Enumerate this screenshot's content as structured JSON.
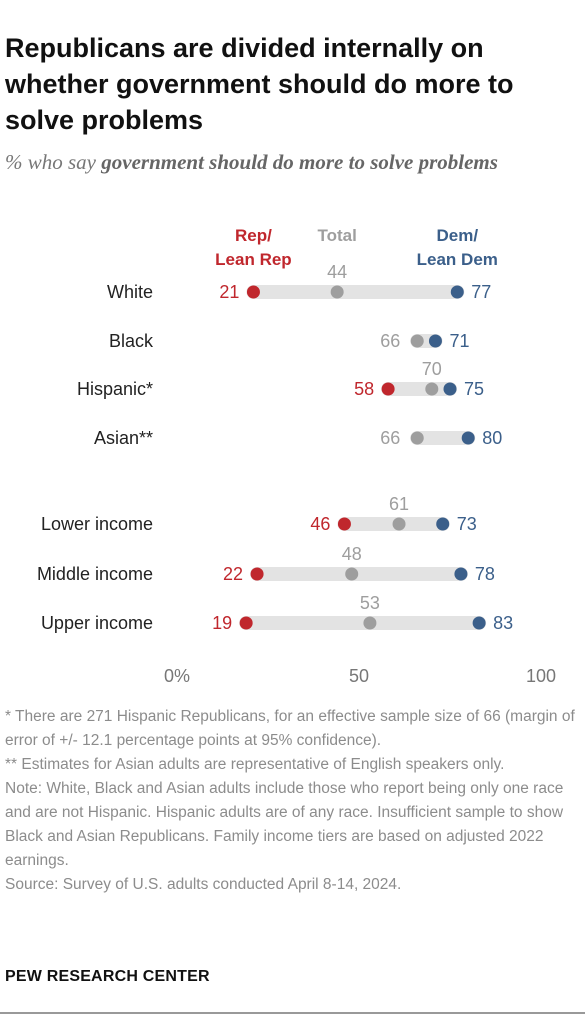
{
  "header": {
    "title": "Republicans are divided internally on whether government should do more to solve problems",
    "subtitle_prefix": "% who say ",
    "subtitle_emphasis": "government should do more to solve problems"
  },
  "chart_data": {
    "type": "dot",
    "xlim": [
      0,
      100
    ],
    "x_ticks": [
      0,
      50,
      100
    ],
    "x_tick_labels": [
      "0%",
      "50",
      "100"
    ],
    "grid": false,
    "legend": [
      {
        "key": "rep",
        "label_lines": [
          "Rep/",
          "Lean Rep"
        ],
        "color": "#c0272d"
      },
      {
        "key": "total",
        "label_lines": [
          "Total"
        ],
        "color": "#9e9e9e"
      },
      {
        "key": "dem",
        "label_lines": [
          "Dem/",
          "Lean Dem"
        ],
        "color": "#3b5f8a"
      }
    ],
    "categories": [
      "White",
      "Black",
      "Hispanic*",
      "Asian**",
      "Lower income",
      "Middle income",
      "Upper income"
    ],
    "series": [
      {
        "key": "rep",
        "values": [
          21,
          null,
          58,
          null,
          46,
          22,
          19
        ]
      },
      {
        "key": "total",
        "values": [
          44,
          66,
          70,
          66,
          61,
          48,
          53
        ]
      },
      {
        "key": "dem",
        "values": [
          77,
          71,
          75,
          80,
          73,
          78,
          83
        ]
      }
    ]
  },
  "notes": [
    "* There are 271 Hispanic Republicans, for an effective sample size of 66 (margin of error of +/- 12.1 percentage points at 95% confidence).",
    "** Estimates for Asian adults are representative of English speakers only.",
    "Note: White, Black and Asian adults include those who report being only one race and are not Hispanic. Hispanic adults are of any race. Insufficient sample to show Black and Asian Republicans. Family income tiers are based on adjusted 2022 earnings.",
    "Source: Survey of U.S. adults conducted April 8-14, 2024."
  ],
  "brand": "PEW RESEARCH CENTER"
}
